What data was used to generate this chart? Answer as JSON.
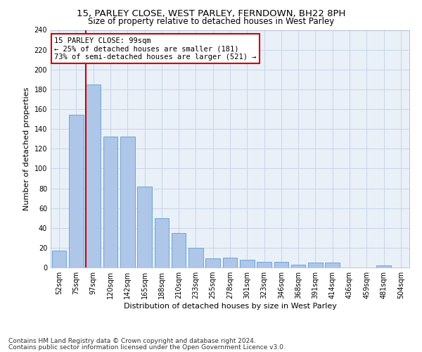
{
  "title1": "15, PARLEY CLOSE, WEST PARLEY, FERNDOWN, BH22 8PH",
  "title2": "Size of property relative to detached houses in West Parley",
  "xlabel": "Distribution of detached houses by size in West Parley",
  "ylabel": "Number of detached properties",
  "categories": [
    "52sqm",
    "75sqm",
    "97sqm",
    "120sqm",
    "142sqm",
    "165sqm",
    "188sqm",
    "210sqm",
    "233sqm",
    "255sqm",
    "278sqm",
    "301sqm",
    "323sqm",
    "346sqm",
    "368sqm",
    "391sqm",
    "414sqm",
    "436sqm",
    "459sqm",
    "481sqm",
    "504sqm"
  ],
  "values": [
    17,
    154,
    185,
    132,
    132,
    82,
    50,
    35,
    20,
    9,
    10,
    8,
    6,
    6,
    3,
    5,
    5,
    0,
    0,
    2,
    0
  ],
  "bar_color": "#aec6e8",
  "bar_edge_color": "#5a9fd4",
  "vline_index": 2,
  "vline_color": "#cc0000",
  "annotation_line1": "15 PARLEY CLOSE: 99sqm",
  "annotation_line2": "← 25% of detached houses are smaller (181)",
  "annotation_line3": "73% of semi-detached houses are larger (521) →",
  "annotation_box_color": "#ffffff",
  "annotation_box_edge": "#cc0000",
  "ylim": [
    0,
    240
  ],
  "yticks": [
    0,
    20,
    40,
    60,
    80,
    100,
    120,
    140,
    160,
    180,
    200,
    220,
    240
  ],
  "footer1": "Contains HM Land Registry data © Crown copyright and database right 2024.",
  "footer2": "Contains public sector information licensed under the Open Government Licence v3.0.",
  "bg_color": "#ffffff",
  "plot_bg_color": "#eaf0f8",
  "grid_color": "#c8d4e8",
  "title1_fontsize": 9.5,
  "title2_fontsize": 8.5,
  "xlabel_fontsize": 8,
  "ylabel_fontsize": 8,
  "tick_fontsize": 7,
  "annotation_fontsize": 7.5,
  "footer_fontsize": 6.5
}
